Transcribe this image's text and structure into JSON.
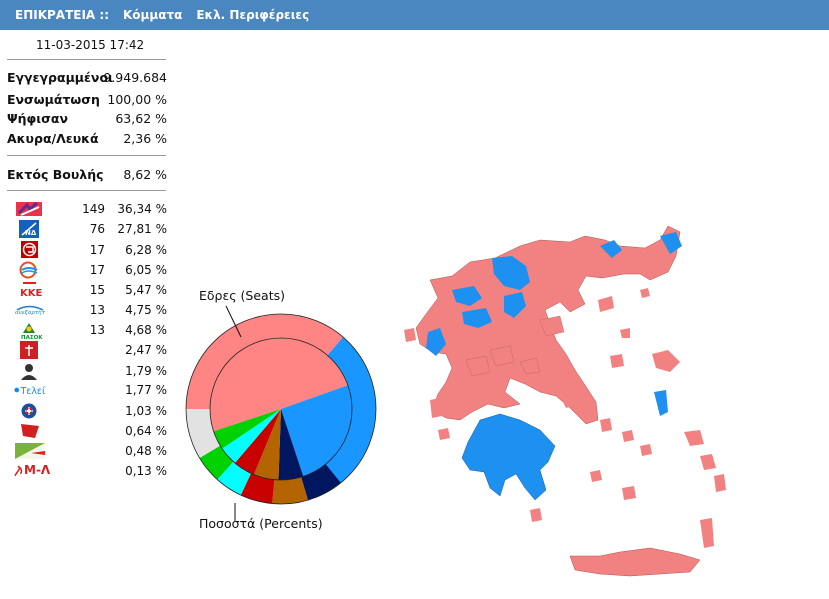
{
  "nav": {
    "items": [
      "ΕΠΙΚΡΑΤΕΙΑ ::",
      "Κόμματα",
      "Εκλ. Περιφέρειες"
    ]
  },
  "timestamp": "11-03-2015 17:42",
  "stats": [
    {
      "label": "Εγγεγραμμένοι",
      "value": "9.949.684"
    },
    {
      "label": "Ενσωμάτωση",
      "value": "100,00 %"
    },
    {
      "label": "Ψήφισαν",
      "value": "63,62 %"
    },
    {
      "label": "Ακυρα/Λευκά",
      "value": "2,36 %"
    }
  ],
  "outside_parliament": {
    "label": "Εκτός Βουλής",
    "value": "8,62 %"
  },
  "parties": [
    {
      "icon": "syriza-logo-icon",
      "seats": "149",
      "percent": "36,34 %",
      "color": "#e8334a"
    },
    {
      "icon": "nd-logo-icon",
      "seats": "76",
      "percent": "27,81 %",
      "color": "#1560bd"
    },
    {
      "icon": "xa-logo-icon",
      "seats": "17",
      "percent": "6,28 %",
      "color": "#c00000"
    },
    {
      "icon": "potami-logo-icon",
      "seats": "17",
      "percent": "6,05 %",
      "color": "#e6531f"
    },
    {
      "icon": "kke-logo-icon",
      "seats": "15",
      "percent": "5,47 %",
      "color": "#e0201f"
    },
    {
      "icon": "anel-logo-icon",
      "seats": "13",
      "percent": "4,75 %",
      "color": "#1b7fcb"
    },
    {
      "icon": "pasok-logo-icon",
      "seats": "13",
      "percent": "4,68 %",
      "color": "#1a8a2c"
    },
    {
      "icon": "kidiso-logo-icon",
      "seats": "",
      "percent": "2,47 %",
      "color": "#cf1f25"
    },
    {
      "icon": "leader-portrait-icon",
      "seats": "",
      "percent": "1,79 %",
      "color": "#333333"
    },
    {
      "icon": "teleia-logo-icon",
      "seats": "",
      "percent": "1,77 %",
      "color": "#1e88e5"
    },
    {
      "icon": "laos-logo-icon",
      "seats": "",
      "percent": "1,03 %",
      "color": "#1c4fa0"
    },
    {
      "icon": "antarsya-logo-icon",
      "seats": "",
      "percent": "0,64 %",
      "color": "#d21f1f"
    },
    {
      "icon": "greens-logo-icon",
      "seats": "",
      "percent": "0,48 %",
      "color": "#7bb33a"
    },
    {
      "label": "Μ-Λ",
      "icon": "ml-kke-logo-icon",
      "seats": "",
      "percent": "0,13 %",
      "color": "#d62020"
    }
  ],
  "chart_data": {
    "type": "pie",
    "annotations": [
      "Εδρες (Seats)",
      "Ποσοστά (Percents)"
    ],
    "series": [
      {
        "name": "Εδρες (Seats)",
        "ring": "inner",
        "values": [
          149,
          76,
          17,
          17,
          15,
          13,
          13
        ]
      },
      {
        "name": "Ποσοστά (Percents)",
        "ring": "outer",
        "values": [
          36.34,
          27.81,
          6.28,
          6.05,
          5.47,
          4.75,
          4.68,
          8.62
        ]
      }
    ],
    "colors": [
      "#ff8484",
      "#1996ff",
      "#001760",
      "#b46400",
      "#c80000",
      "#00ffff",
      "#00d200",
      "#e2e2e2"
    ]
  },
  "map": {
    "colors": {
      "syriza": "#f28282",
      "nd": "#1e90f0"
    }
  }
}
